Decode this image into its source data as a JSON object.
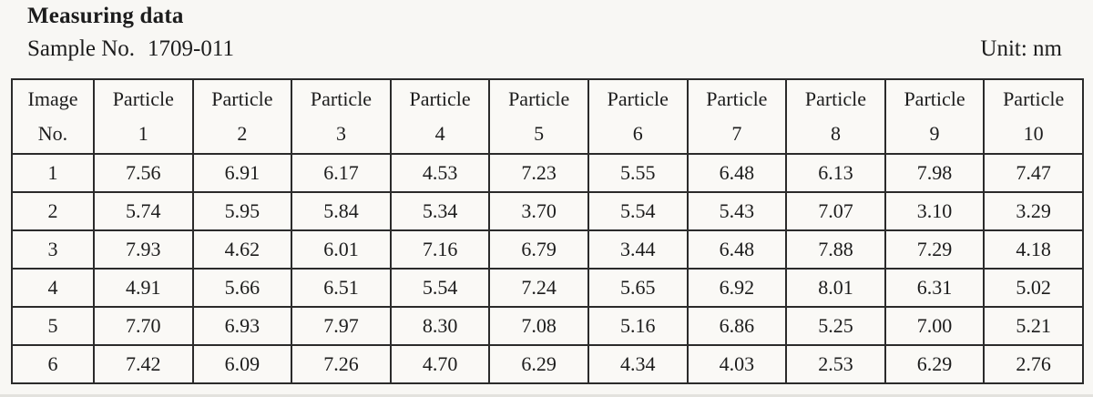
{
  "page": {
    "title": "Measuring data",
    "sample_label": "Sample No.",
    "sample_value": "1709-011",
    "unit_label": "Unit: nm"
  },
  "table": {
    "headers": [
      "Image\nNo.",
      "Particle\n1",
      "Particle\n2",
      "Particle\n3",
      "Particle\n4",
      "Particle\n5",
      "Particle\n6",
      "Particle\n7",
      "Particle\n8",
      "Particle\n9",
      "Particle\n10"
    ],
    "rows": [
      {
        "image_no": "1",
        "values": [
          "7.56",
          "6.91",
          "6.17",
          "4.53",
          "7.23",
          "5.55",
          "6.48",
          "6.13",
          "7.98",
          "7.47"
        ]
      },
      {
        "image_no": "2",
        "values": [
          "5.74",
          "5.95",
          "5.84",
          "5.34",
          "3.70",
          "5.54",
          "5.43",
          "7.07",
          "3.10",
          "3.29"
        ]
      },
      {
        "image_no": "3",
        "values": [
          "7.93",
          "4.62",
          "6.01",
          "7.16",
          "6.79",
          "3.44",
          "6.48",
          "7.88",
          "7.29",
          "4.18"
        ]
      },
      {
        "image_no": "4",
        "values": [
          "4.91",
          "5.66",
          "6.51",
          "5.54",
          "7.24",
          "5.65",
          "6.92",
          "8.01",
          "6.31",
          "5.02"
        ]
      },
      {
        "image_no": "5",
        "values": [
          "7.70",
          "6.93",
          "7.97",
          "8.30",
          "7.08",
          "5.16",
          "6.86",
          "5.25",
          "7.00",
          "5.21"
        ]
      },
      {
        "image_no": "6",
        "values": [
          "7.42",
          "6.09",
          "7.26",
          "4.70",
          "6.29",
          "4.34",
          "4.03",
          "2.53",
          "6.29",
          "2.76"
        ]
      }
    ]
  },
  "colors": {
    "background": "#f8f7f4",
    "text": "#1c1c1c",
    "border": "#2b2b2b"
  }
}
